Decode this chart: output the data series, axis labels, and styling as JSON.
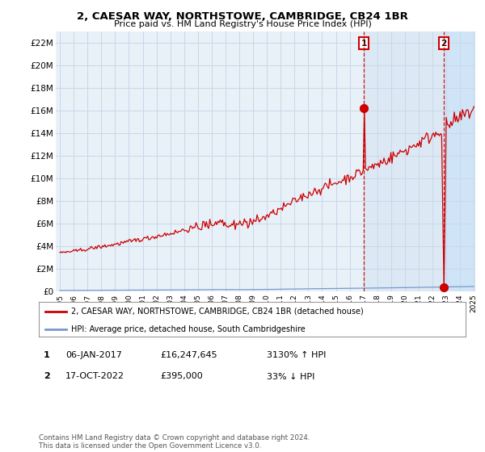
{
  "title": "2, CAESAR WAY, NORTHSTOWE, CAMBRIDGE, CB24 1BR",
  "subtitle": "Price paid vs. HM Land Registry's House Price Index (HPI)",
  "x_start_year": 1995,
  "x_end_year": 2025,
  "ylim": [
    0,
    23000000
  ],
  "yticks": [
    0,
    2000000,
    4000000,
    6000000,
    8000000,
    10000000,
    12000000,
    14000000,
    16000000,
    18000000,
    20000000,
    22000000
  ],
  "ytick_labels": [
    "£0",
    "£2M",
    "£4M",
    "£6M",
    "£8M",
    "£10M",
    "£12M",
    "£14M",
    "£16M",
    "£18M",
    "£20M",
    "£22M"
  ],
  "hpi_color": "#7799cc",
  "price_color": "#cc0000",
  "grid_color": "#c8d8e8",
  "plot_bg": "#e8f0f8",
  "highlight1_color": "#dde8f5",
  "highlight2_color": "#d0e4f8",
  "marker1_date_year": 2017.03,
  "marker1_value": 16247645,
  "marker2_date_year": 2022.8,
  "marker2_value": 395000,
  "legend_line1": "2, CAESAR WAY, NORTHSTOWE, CAMBRIDGE, CB24 1BR (detached house)",
  "legend_line2": "HPI: Average price, detached house, South Cambridgeshire",
  "table_row1": [
    "1",
    "06-JAN-2017",
    "£16,247,645",
    "3130% ↑ HPI"
  ],
  "table_row2": [
    "2",
    "17-OCT-2022",
    "£395,000",
    "33% ↓ HPI"
  ],
  "footnote": "Contains HM Land Registry data © Crown copyright and database right 2024.\nThis data is licensed under the Open Government Licence v3.0."
}
